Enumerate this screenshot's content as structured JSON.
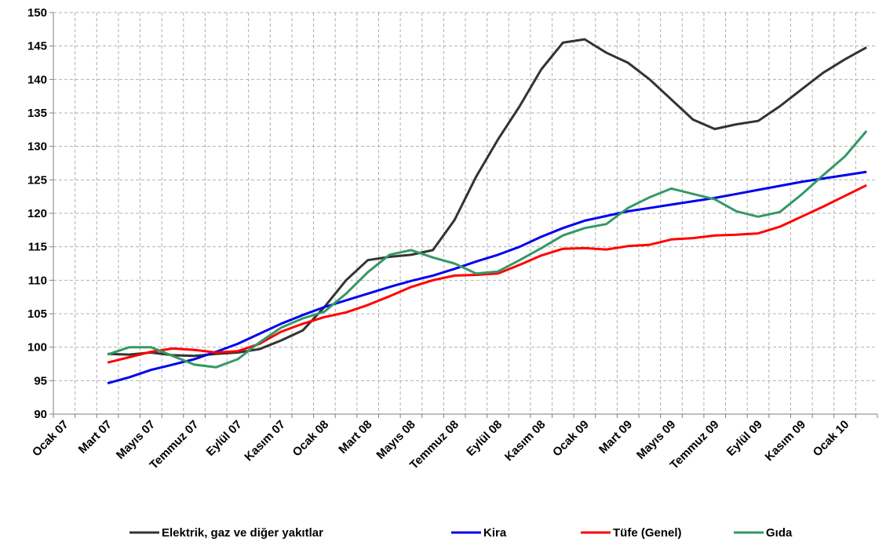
{
  "chart_data": {
    "type": "line",
    "categories": [
      "Ocak 07",
      null,
      "Mart 07",
      null,
      "Mayıs 07",
      null,
      "Temmuz 07",
      null,
      "Eylül 07",
      null,
      "Kasım 07",
      null,
      "Ocak 08",
      null,
      "Mart 08",
      null,
      "Mayıs 08",
      null,
      "Temmuz 08",
      null,
      "Eylül 08",
      null,
      "Kasım 08",
      null,
      "Ocak 09",
      null,
      "Mart 09",
      null,
      "Mayıs 09",
      null,
      "Temmuz 09",
      null,
      "Eylül 09",
      null,
      "Kasım 09",
      null,
      "Ocak 10",
      null
    ],
    "series": [
      {
        "name": "Elektrik, gaz ve diğer yakıtlar",
        "color": "#333333",
        "values": [
          null,
          null,
          99,
          98.9,
          99.2,
          98.8,
          98.7,
          99,
          99.2,
          99.7,
          101,
          102.5,
          106,
          110,
          113,
          113.5,
          113.8,
          114.5,
          119,
          125.5,
          131,
          136,
          141.5,
          145.5,
          146,
          144,
          142.5,
          140,
          137,
          134,
          132.6,
          133.3,
          133.8,
          136,
          138.5,
          141,
          143,
          144.8
        ]
      },
      {
        "name": "Kira",
        "color": "#0000ee",
        "values": [
          null,
          null,
          94.6,
          95.5,
          96.6,
          97.4,
          98.2,
          99.3,
          100.5,
          102,
          103.5,
          104.8,
          106,
          107,
          108,
          109,
          109.9,
          110.7,
          111.7,
          112.8,
          113.8,
          115,
          116.5,
          117.8,
          118.9,
          119.6,
          120.3,
          120.8,
          121.3,
          121.8,
          122.3,
          122.9,
          123.5,
          124.1,
          124.7,
          125.2,
          125.7,
          126.2
        ]
      },
      {
        "name": "Tüfe (Genel)",
        "color": "#ff0000",
        "values": [
          null,
          null,
          97.7,
          98.5,
          99.3,
          99.8,
          99.6,
          99.2,
          99.4,
          100.5,
          102.3,
          103.5,
          104.5,
          105.2,
          106.3,
          107.6,
          109,
          110,
          110.7,
          110.8,
          111,
          112.3,
          113.7,
          114.7,
          114.8,
          114.6,
          115.1,
          115.3,
          116.1,
          116.3,
          116.7,
          116.8,
          117,
          118,
          119.5,
          121,
          122.6,
          124.2
        ]
      },
      {
        "name": "Gıda",
        "color": "#339966",
        "values": [
          null,
          null,
          98.9,
          100,
          100,
          98.7,
          97.4,
          97,
          98.2,
          100.7,
          102.9,
          104.3,
          105.3,
          108,
          111.2,
          113.8,
          114.5,
          113.4,
          112.5,
          111,
          111.3,
          113,
          114.8,
          116.7,
          117.8,
          118.4,
          120.8,
          122.4,
          123.7,
          122.9,
          122.1,
          120.3,
          119.5,
          120.2,
          122.8,
          125.7,
          128.5,
          132.3
        ]
      }
    ],
    "ylim": [
      90,
      150
    ],
    "yticks": [
      90,
      95,
      100,
      105,
      110,
      115,
      120,
      125,
      130,
      135,
      140,
      145,
      150
    ],
    "grid": true,
    "legend": "bottom"
  }
}
